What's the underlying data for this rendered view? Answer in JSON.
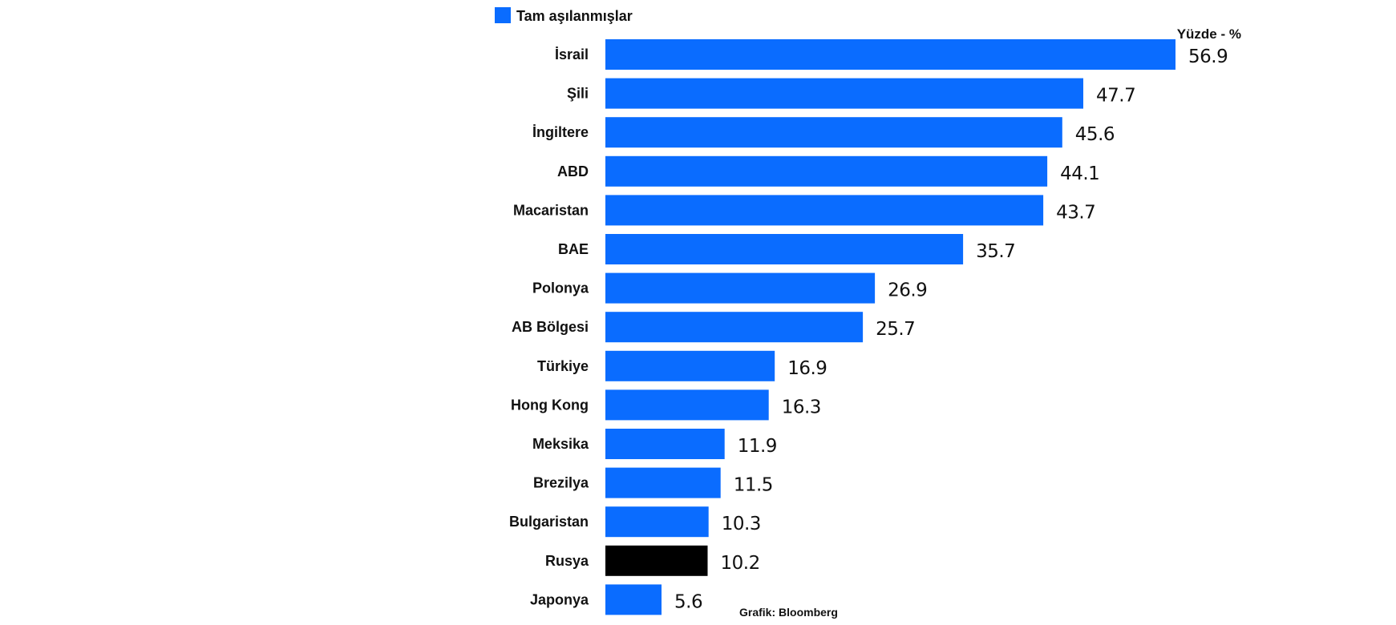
{
  "chart_data": {
    "type": "bar",
    "orientation": "horizontal",
    "unit_label": "Yüzde - %",
    "source": "Grafik: Bloomberg",
    "legend": [
      {
        "label": "Tam aşılanmışlar",
        "color": "#0A6CFF"
      }
    ],
    "categories": [
      "İsrail",
      "Şili",
      "İngiltere",
      "ABD",
      "Macaristan",
      "BAE",
      "Polonya",
      "AB Bölgesi",
      "Türkiye",
      "Hong Kong",
      "Meksika",
      "Brezilya",
      "Bulgaristan",
      "Rusya",
      "Japonya"
    ],
    "series": [
      {
        "name": "Tam aşılanmışlar",
        "values": [
          56.9,
          47.7,
          45.6,
          44.1,
          43.7,
          35.7,
          26.9,
          25.7,
          16.9,
          16.3,
          11.9,
          11.5,
          10.3,
          10.2,
          5.6
        ]
      }
    ],
    "value_labels": [
      "56.9",
      "47.7",
      "45.6",
      "44.1",
      "43.7",
      "35.7",
      "26.9",
      "25.7",
      "16.9",
      "16.3",
      "11.9",
      "11.5",
      "10.3",
      "10.2",
      "5.6"
    ],
    "colors": {
      "default": "#0A6CFF",
      "highlight": "#000000"
    },
    "highlight_category": "Rusya",
    "xlim": [
      0,
      56.9
    ],
    "grid": false,
    "legend_position": "top-left"
  }
}
